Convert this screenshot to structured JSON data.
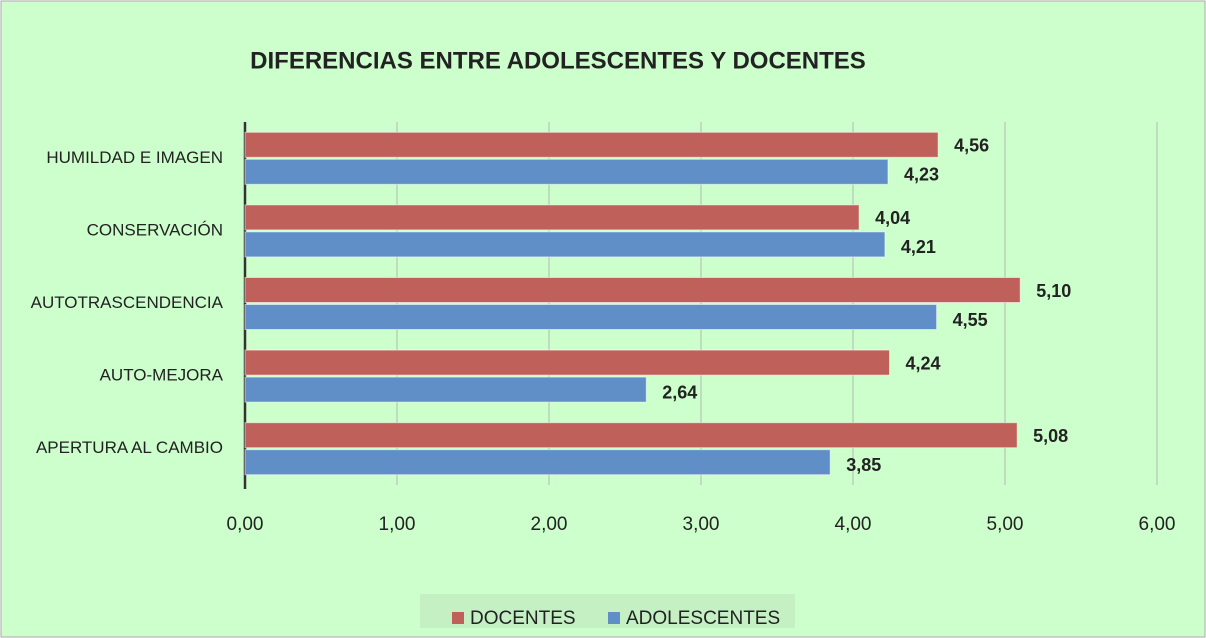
{
  "chart_data": {
    "type": "hbar",
    "title": "DIFERENCIAS ENTRE ADOLESCENTES Y DOCENTES",
    "categories": [
      "HUMILDAD E IMAGEN",
      "CONSERVACIÓN",
      "AUTOTRASCENDENCIA",
      "AUTO-MEJORA",
      "APERTURA AL CAMBIO"
    ],
    "series": [
      {
        "name": "DOCENTES",
        "color": "#c0605a",
        "values": [
          4.56,
          4.04,
          5.1,
          4.24,
          5.08
        ],
        "value_labels": [
          "4,56",
          "4,04",
          "5,10",
          "4,24",
          "5,08"
        ]
      },
      {
        "name": "ADOLESCENTES",
        "color": "#5f8fc6",
        "values": [
          4.23,
          4.21,
          4.55,
          2.64,
          3.85
        ],
        "value_labels": [
          "4,23",
          "4,21",
          "4,55",
          "2,64",
          "3,85"
        ]
      }
    ],
    "xlim": [
      0,
      6
    ],
    "xticks": [
      {
        "value": 0,
        "label": "0,00"
      },
      {
        "value": 1,
        "label": "1,00"
      },
      {
        "value": 2,
        "label": "2,00"
      },
      {
        "value": 3,
        "label": "3,00"
      },
      {
        "value": 4,
        "label": "4,00"
      },
      {
        "value": 5,
        "label": "5,00"
      },
      {
        "value": 6,
        "label": "6,00"
      }
    ],
    "grid": true,
    "legend": "bottom"
  }
}
